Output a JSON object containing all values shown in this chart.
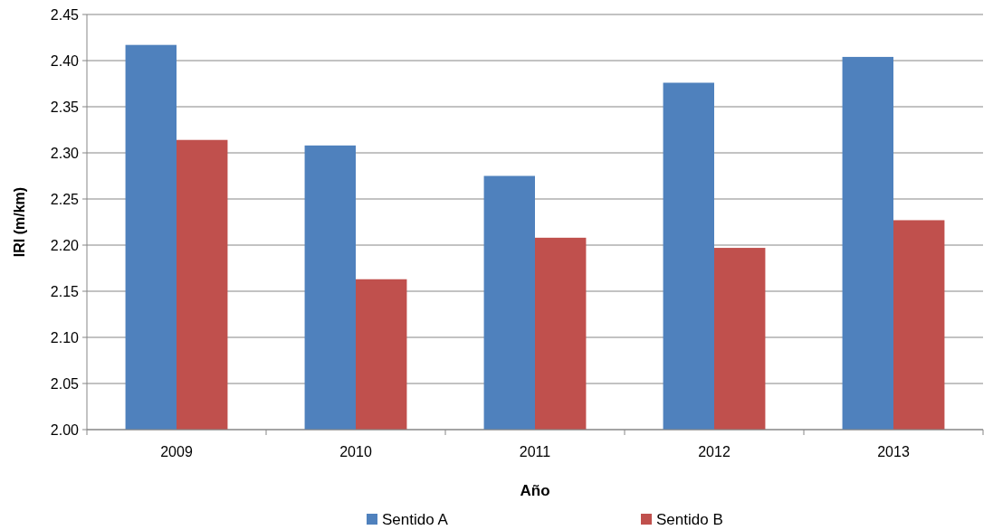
{
  "chart_data": {
    "type": "bar",
    "xlabel": "Año",
    "ylabel": "IRI (m/km)",
    "categories": [
      "2009",
      "2010",
      "2011",
      "2012",
      "2013"
    ],
    "series": [
      {
        "name": "Sentido A",
        "color": "#4f81bd",
        "values": [
          2.417,
          2.308,
          2.275,
          2.376,
          2.404
        ]
      },
      {
        "name": "Sentido B",
        "color": "#c0504d",
        "values": [
          2.314,
          2.163,
          2.208,
          2.197,
          2.227
        ]
      }
    ],
    "ylim": [
      2.0,
      2.45
    ],
    "yticks": [
      {
        "value": 2.0,
        "label": "2.00"
      },
      {
        "value": 2.05,
        "label": "2.05"
      },
      {
        "value": 2.1,
        "label": "2.10"
      },
      {
        "value": 2.15,
        "label": "2.15"
      },
      {
        "value": 2.2,
        "label": "2.20"
      },
      {
        "value": 2.25,
        "label": "2.25"
      },
      {
        "value": 2.3,
        "label": "2.30"
      },
      {
        "value": 2.35,
        "label": "2.35"
      },
      {
        "value": 2.4,
        "label": "2.40"
      },
      {
        "value": 2.45,
        "label": "2.45"
      }
    ],
    "grid": "y",
    "legend": "bottom"
  }
}
